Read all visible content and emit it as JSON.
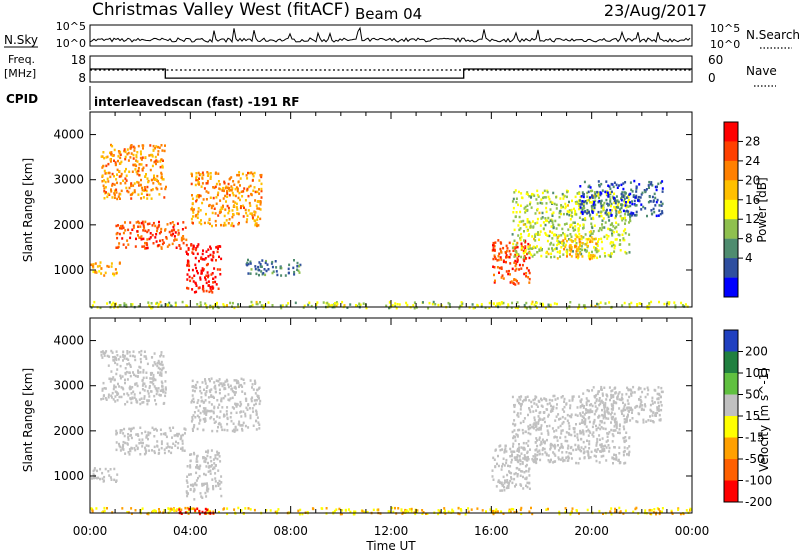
{
  "header": {
    "station": "Christmas Valley West (fitACF)",
    "beam": "Beam 04",
    "date": "23/Aug/2017"
  },
  "noise_panel": {
    "left_label": "N.Sky",
    "right_label": "N.Search",
    "left_ticks": [
      "10^5",
      "10^0"
    ],
    "right_ticks": [
      "10^5",
      "10^0"
    ]
  },
  "freq_panel": {
    "left_label_1": "Freq.",
    "left_label_2": "[MHz]",
    "right_label": "Nave",
    "left_ticks": [
      "18",
      "8"
    ],
    "right_ticks": [
      "60",
      "0"
    ],
    "freq_mhz": [
      {
        "t": 0,
        "v": 13
      },
      {
        "t": 3.0,
        "v": 13
      },
      {
        "t": 3.0,
        "v": 9.5
      },
      {
        "t": 14.9,
        "v": 9.5
      },
      {
        "t": 14.9,
        "v": 13
      },
      {
        "t": 24,
        "v": 13
      }
    ]
  },
  "cpid": {
    "label": "CPID",
    "program": "interleavedscan (fast) -191 RF"
  },
  "colors": {
    "power_scale": [
      "#0000ff",
      "#2f4f9f",
      "#4f8c6f",
      "#8fc04f",
      "#ffff00",
      "#ffc000",
      "#ff8000",
      "#ff4000",
      "#ff0000"
    ],
    "velocity_scale": [
      "#2040c0",
      "#208040",
      "#60c040",
      "#c0c0c0",
      "#ffff00",
      "#ffa000",
      "#ff6000",
      "#ff0000"
    ]
  },
  "chart_data": [
    {
      "type": "heatmap",
      "title": "Power",
      "ylabel": "Slant Range [km]",
      "yticks": [
        "1000",
        "2000",
        "3000",
        "4000"
      ],
      "ylim": [
        180,
        4500
      ],
      "xlim": [
        0,
        24
      ],
      "colorbar_label": "Power [dB]",
      "colorbar_ticks": [
        "4",
        "8",
        "12",
        "16",
        "20",
        "24",
        "28"
      ],
      "series": [
        {
          "t0": 0.0,
          "t1": 24.0,
          "r0": 180,
          "r1": 320,
          "value": 14
        },
        {
          "t0": 0.0,
          "t1": 1.2,
          "r0": 900,
          "r1": 1200,
          "value": 20
        },
        {
          "t0": 0.4,
          "t1": 3.0,
          "r0": 2600,
          "r1": 3800,
          "value": 22
        },
        {
          "t0": 1.0,
          "t1": 3.8,
          "r0": 1500,
          "r1": 2100,
          "value": 26
        },
        {
          "t0": 3.8,
          "t1": 5.2,
          "r0": 500,
          "r1": 1600,
          "value": 30
        },
        {
          "t0": 4.0,
          "t1": 6.8,
          "r0": 2000,
          "r1": 3200,
          "value": 22
        },
        {
          "t0": 6.2,
          "t1": 8.4,
          "r0": 900,
          "r1": 1250,
          "value": 8
        },
        {
          "t0": 16.0,
          "t1": 17.5,
          "r0": 700,
          "r1": 1700,
          "value": 26
        },
        {
          "t0": 16.8,
          "t1": 21.5,
          "r0": 1300,
          "r1": 2800,
          "value": 14
        },
        {
          "t0": 18.6,
          "t1": 20.2,
          "r0": 1250,
          "r1": 1800,
          "value": 20
        },
        {
          "t0": 19.5,
          "t1": 22.8,
          "r0": 2200,
          "r1": 3000,
          "value": 6
        }
      ]
    },
    {
      "type": "heatmap",
      "title": "Velocity",
      "ylabel": "Slant Range [km]",
      "yticks": [
        "1000",
        "2000",
        "3000",
        "4000"
      ],
      "ylim": [
        180,
        4500
      ],
      "xlim": [
        0,
        24
      ],
      "xticks": [
        "00:00",
        "04:00",
        "08:00",
        "12:00",
        "16:00",
        "20:00",
        "00:00"
      ],
      "xlabel": "Time UT",
      "colorbar_label": "Velocity [m s^-1]",
      "colorbar_ticks": [
        "200",
        "100",
        "50",
        "15",
        "-15",
        "-50",
        "-100",
        "-200"
      ],
      "series": [
        {
          "t0": 0.0,
          "t1": 24.0,
          "r0": 180,
          "r1": 320,
          "value": -40
        },
        {
          "t0": 0.0,
          "t1": 1.2,
          "r0": 900,
          "r1": 1200,
          "value": 0
        },
        {
          "t0": 0.4,
          "t1": 3.0,
          "r0": 2600,
          "r1": 3800,
          "value": 0
        },
        {
          "t0": 1.0,
          "t1": 3.8,
          "r0": 1500,
          "r1": 2100,
          "value": 0
        },
        {
          "t0": 3.8,
          "t1": 5.2,
          "r0": 500,
          "r1": 1600,
          "value": 0
        },
        {
          "t0": 4.0,
          "t1": 6.8,
          "r0": 2000,
          "r1": 3200,
          "value": 10
        },
        {
          "t0": 16.0,
          "t1": 17.5,
          "r0": 700,
          "r1": 1700,
          "value": 0
        },
        {
          "t0": 16.8,
          "t1": 21.5,
          "r0": 1300,
          "r1": 2800,
          "value": 0
        },
        {
          "t0": 19.5,
          "t1": 22.8,
          "r0": 2200,
          "r1": 3000,
          "value": 0
        },
        {
          "t0": 3.5,
          "t1": 5.0,
          "r0": 180,
          "r1": 320,
          "value": -250
        }
      ]
    }
  ]
}
